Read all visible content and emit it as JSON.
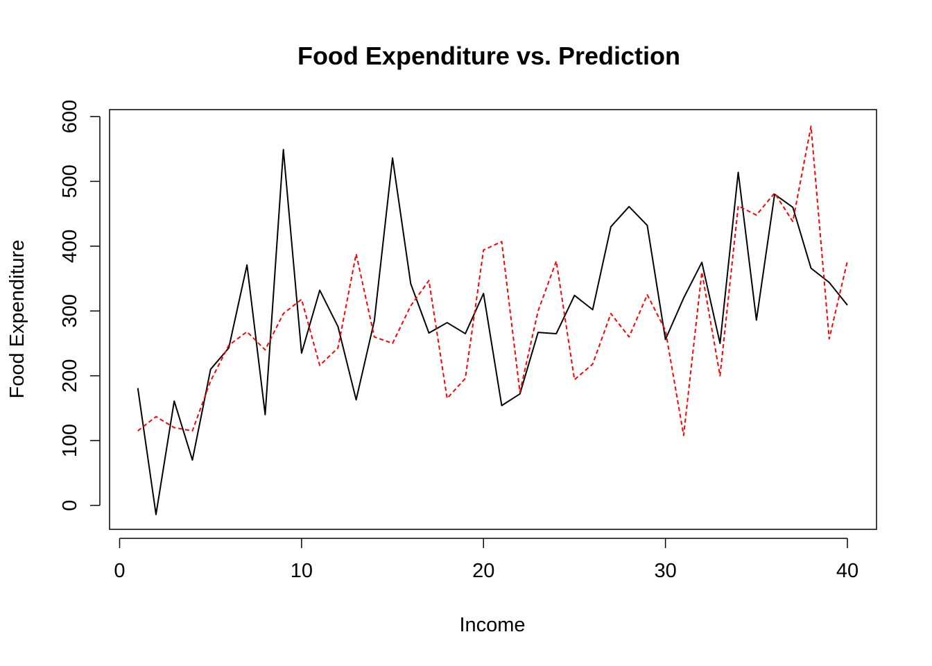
{
  "chart_data": {
    "type": "line",
    "title": "Food Expenditure vs. Prediction",
    "xlabel": "Income",
    "ylabel": "Food Expenditure",
    "xlim": [
      0,
      40
    ],
    "ylim": [
      -15,
      590
    ],
    "x_ticks": [
      0,
      10,
      20,
      30,
      40
    ],
    "y_ticks": [
      0,
      100,
      200,
      300,
      400,
      500,
      600
    ],
    "grid": false,
    "legend": "none",
    "x": [
      1,
      2,
      3,
      4,
      5,
      6,
      7,
      8,
      9,
      10,
      11,
      12,
      13,
      14,
      15,
      16,
      17,
      18,
      19,
      20,
      21,
      22,
      23,
      24,
      25,
      26,
      27,
      28,
      29,
      30,
      31,
      32,
      33,
      34,
      35,
      36,
      37,
      38,
      39,
      40
    ],
    "series": [
      {
        "color": "#000000",
        "dash": "solid",
        "values": [
          181,
          -14,
          161,
          70,
          210,
          243,
          371,
          140,
          549,
          235,
          332,
          276,
          163,
          285,
          536,
          342,
          266,
          282,
          265,
          327,
          154,
          172,
          267,
          265,
          324,
          302,
          430,
          461,
          432,
          256,
          320,
          375,
          250,
          514,
          286,
          480,
          460,
          366,
          344,
          309
        ]
      },
      {
        "color": "#ff0000",
        "dash": "dashed",
        "values": [
          115,
          137,
          120,
          115,
          192,
          247,
          268,
          240,
          296,
          318,
          216,
          243,
          388,
          260,
          250,
          308,
          347,
          165,
          196,
          394,
          407,
          175,
          300,
          377,
          194,
          218,
          296,
          260,
          325,
          270,
          108,
          360,
          200,
          462,
          448,
          482,
          438,
          585,
          257,
          377
        ]
      }
    ]
  }
}
